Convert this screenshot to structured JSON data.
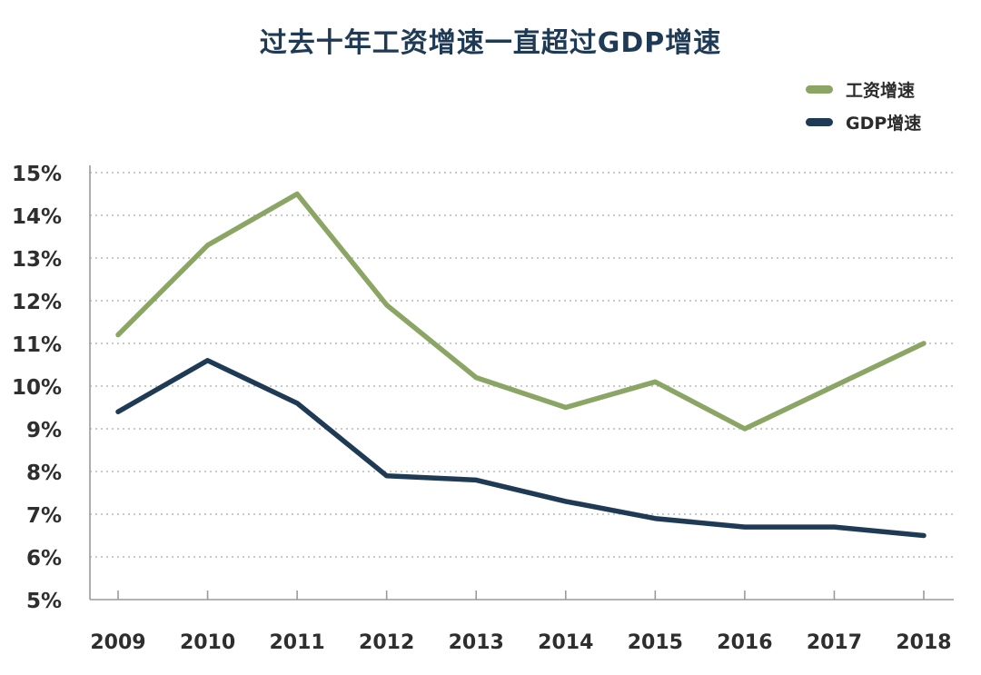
{
  "chart_data": {
    "type": "line",
    "title": "过去十年工资增速一直超过GDP增速",
    "categories": [
      "2009",
      "2010",
      "2011",
      "2012",
      "2013",
      "2014",
      "2015",
      "2016",
      "2017",
      "2018"
    ],
    "series": [
      {
        "name": "工资增速",
        "color": "#8ba564",
        "values": [
          11.2,
          13.3,
          14.5,
          11.9,
          10.2,
          9.5,
          10.1,
          9.0,
          10.0,
          11.0
        ]
      },
      {
        "name": "GDP增速",
        "color": "#1e3a55",
        "values": [
          9.4,
          10.6,
          9.6,
          7.9,
          7.8,
          7.3,
          6.9,
          6.7,
          6.7,
          6.5
        ]
      }
    ],
    "y_ticks": [
      "5%",
      "6%",
      "7%",
      "8%",
      "9%",
      "10%",
      "11%",
      "12%",
      "13%",
      "14%",
      "15%"
    ],
    "ylim": [
      5,
      15
    ],
    "xlabel": "",
    "ylabel": "",
    "grid": true,
    "legend_position": "top-right"
  }
}
